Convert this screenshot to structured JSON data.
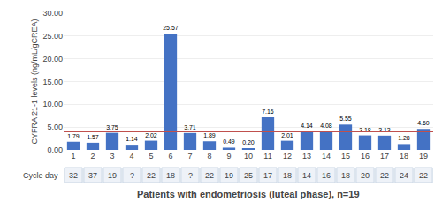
{
  "chart_data": {
    "type": "bar",
    "categories": [
      "1",
      "2",
      "3",
      "4",
      "5",
      "6",
      "7",
      "8",
      "9",
      "10",
      "11",
      "12",
      "13",
      "14",
      "15",
      "16",
      "17",
      "18",
      "19"
    ],
    "values": [
      1.79,
      1.57,
      3.75,
      1.14,
      2.02,
      25.57,
      3.71,
      1.89,
      0.49,
      0.2,
      7.16,
      2.01,
      4.14,
      4.08,
      5.55,
      3.18,
      3.13,
      1.28,
      4.6
    ],
    "value_labels": [
      "1.79",
      "1.57",
      "3.75",
      "1.14",
      "2.02",
      "25.57",
      "3.71",
      "1.89",
      "0.49",
      "0.20",
      "7.16",
      "2.01",
      "4.14",
      "4.08",
      "5.55",
      "3.18",
      "3.13",
      "1.28",
      "4.60"
    ],
    "data_labels": true,
    "color": "#4472C4",
    "xlabel": "Patients with endometriosis (luteal phase), n=19",
    "ylabel": "CYFRA 21-1 levels (ng/mL/gCREA)",
    "ylim": [
      0,
      30.0
    ],
    "yticks": [
      {
        "value": 0.0,
        "label": "0.00"
      },
      {
        "value": 5.0,
        "label": "5.00"
      },
      {
        "value": 10.0,
        "label": "10.00"
      },
      {
        "value": 15.0,
        "label": "15.00"
      },
      {
        "value": 20.0,
        "label": "20.00"
      },
      {
        "value": 25.0,
        "label": "25.00"
      },
      {
        "value": 30.0,
        "label": "30.00"
      }
    ],
    "grid": true,
    "reference_line": {
      "value": 4.0,
      "color": "#C0504D"
    },
    "cycle_day_label": "Cycle day",
    "cycle_days": [
      "32",
      "37",
      "19",
      "?",
      "22",
      "18",
      "?",
      "22",
      "19",
      "25",
      "17",
      "18",
      "14",
      "16",
      "18",
      "20",
      "22",
      "24",
      "22"
    ]
  }
}
